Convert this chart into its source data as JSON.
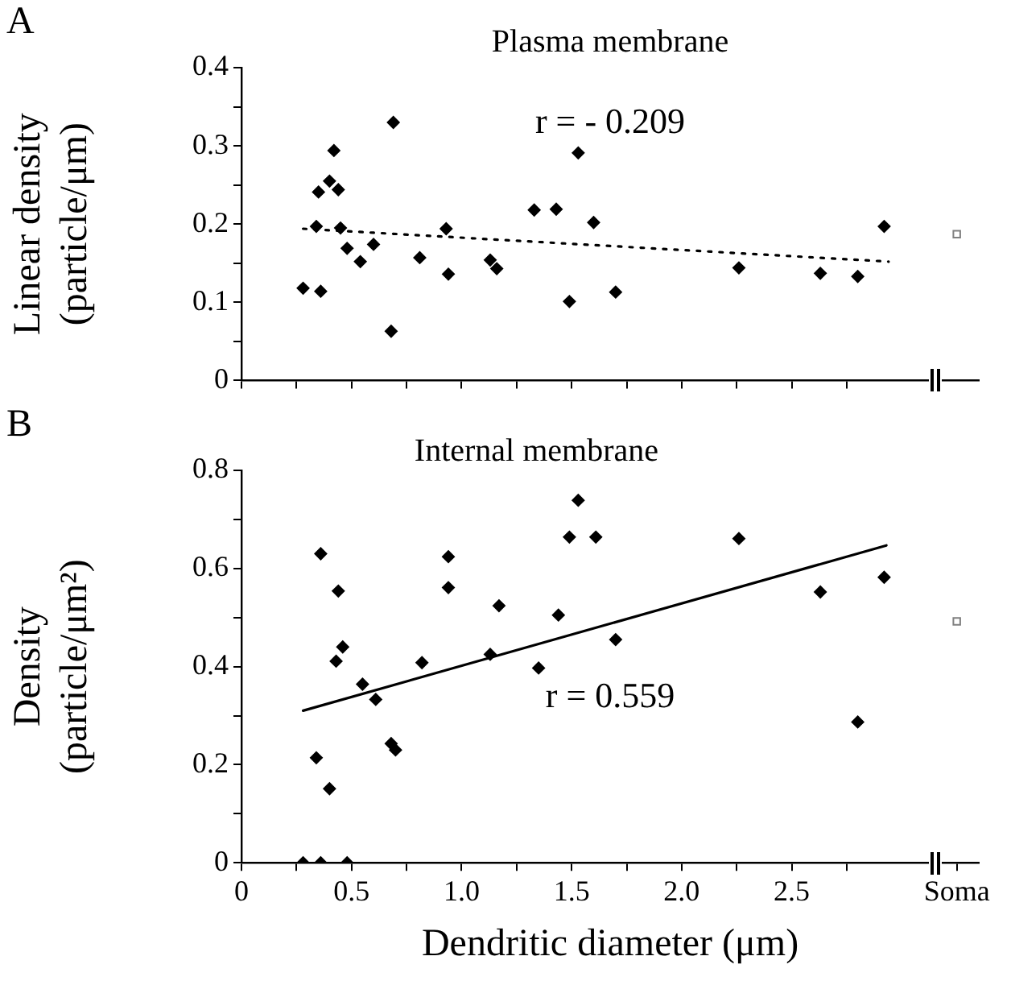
{
  "chart_data": [
    {
      "type": "scatter",
      "title": "Plasma membrane",
      "ylabel": "Linear density (particle/μm)",
      "annotations": [
        "A",
        "r = - 0.209"
      ],
      "tick_labels": "y",
      "xlim": [
        0,
        3.35
      ],
      "ylim": [
        0,
        0.4
      ],
      "xticks": [
        0,
        0.25,
        0.5,
        0.75,
        1,
        1.25,
        1.5,
        1.75,
        2,
        2.25,
        2.5,
        2.75
      ],
      "yticks": [
        0,
        {
          "value": 0.05,
          "label": null
        },
        0.1,
        {
          "value": 0.15,
          "label": null
        },
        0.2,
        {
          "value": 0.25,
          "label": null
        },
        0.3,
        {
          "value": 0.35,
          "label": null
        },
        0.4
      ],
      "series": [
        {
          "marker": "diamond",
          "color": "#000000",
          "x": [
            0.28,
            0.34,
            0.35,
            0.36,
            0.4,
            0.42,
            0.44,
            0.45,
            0.48,
            0.54,
            0.6,
            0.68,
            0.69,
            0.81,
            0.93,
            0.94,
            1.13,
            1.16,
            1.33,
            1.43,
            1.49,
            1.53,
            1.6,
            1.7,
            2.26,
            2.63,
            2.8,
            2.92
          ],
          "values": [
            0.118,
            0.197,
            0.241,
            0.114,
            0.255,
            0.294,
            0.244,
            0.195,
            0.169,
            0.152,
            0.174,
            0.063,
            0.33,
            0.157,
            0.194,
            0.136,
            0.154,
            0.143,
            0.218,
            0.219,
            0.101,
            0.291,
            0.202,
            0.113,
            0.144,
            0.137,
            0.133,
            0.197
          ]
        },
        {
          "marker": "square",
          "color": "#808080",
          "x": [
            3.25
          ],
          "values": [
            0.187
          ]
        },
        {
          "type": "line",
          "marker": "none",
          "line_style": "dotted",
          "color": "#000000",
          "x": [
            0.28,
            2.94
          ],
          "values": [
            0.194,
            0.152
          ]
        }
      ]
    },
    {
      "type": "scatter",
      "title": "Internal membrane",
      "xlabel": "Dendritic diameter (μm)",
      "ylabel": "Density (particle/μm²)",
      "annotations": [
        "B",
        "r = 0.559"
      ],
      "xlim": [
        0,
        3.35
      ],
      "ylim": [
        0,
        0.8
      ],
      "xticks": [
        0,
        {
          "value": 0.25,
          "label": null
        },
        0.5,
        {
          "value": 0.75,
          "label": null
        },
        {
          "value": 1,
          "label": "1.0"
        },
        {
          "value": 1.25,
          "label": null
        },
        1.5,
        {
          "value": 1.75,
          "label": null
        },
        {
          "value": 2,
          "label": "2.0"
        },
        {
          "value": 2.25,
          "label": null
        },
        2.5,
        {
          "value": 2.75,
          "label": null
        },
        {
          "value": 3.25,
          "label": "Soma"
        }
      ],
      "yticks": [
        0,
        {
          "value": 0.1,
          "label": null
        },
        0.2,
        {
          "value": 0.3,
          "label": null
        },
        0.4,
        {
          "value": 0.5,
          "label": null
        },
        0.6,
        {
          "value": 0.7,
          "label": null
        },
        0.8
      ],
      "series": [
        {
          "marker": "diamond",
          "color": "#000000",
          "x": [
            0.28,
            0.36,
            0.48,
            0.34,
            0.36,
            0.4,
            0.43,
            0.44,
            0.46,
            0.55,
            0.61,
            0.68,
            0.7,
            0.82,
            0.94,
            0.94,
            1.13,
            1.17,
            1.35,
            1.44,
            1.49,
            1.53,
            1.61,
            1.7,
            2.26,
            2.63,
            2.8,
            2.92
          ],
          "values": [
            0,
            0,
            0,
            0.214,
            0.63,
            0.151,
            0.411,
            0.554,
            0.44,
            0.364,
            0.333,
            0.243,
            0.23,
            0.408,
            0.624,
            0.561,
            0.425,
            0.524,
            0.397,
            0.505,
            0.664,
            0.739,
            0.664,
            0.455,
            0.661,
            0.552,
            0.287,
            0.582
          ]
        },
        {
          "marker": "square",
          "color": "#808080",
          "x": [
            3.25
          ],
          "values": [
            0.492
          ]
        },
        {
          "type": "line",
          "marker": "none",
          "line_style": "solid",
          "color": "#000000",
          "x": [
            0.28,
            2.93
          ],
          "values": [
            0.31,
            0.647
          ]
        }
      ]
    }
  ]
}
